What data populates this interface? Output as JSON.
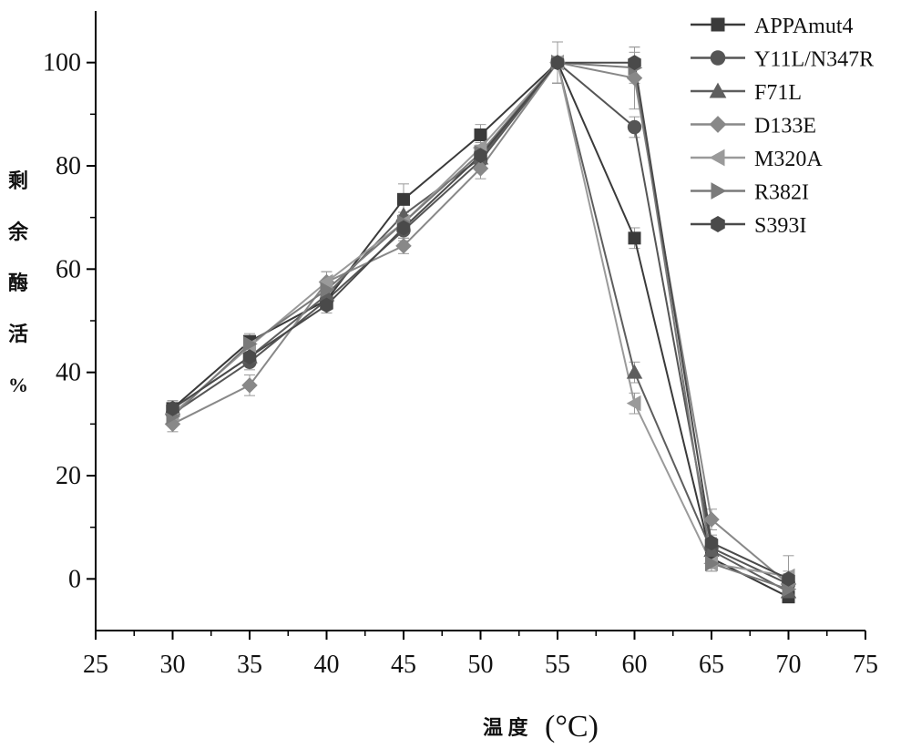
{
  "chart_data": {
    "type": "line",
    "xlabel": "温 度",
    "xlabel_unit": "(°C)",
    "ylabel": [
      "剩",
      "余",
      "酶",
      "活",
      "%"
    ],
    "xlim": [
      25,
      75
    ],
    "ylim": [
      -10,
      110
    ],
    "x_ticks": [
      25,
      30,
      35,
      40,
      45,
      50,
      55,
      60,
      65,
      70,
      75
    ],
    "y_ticks": [
      0,
      20,
      40,
      60,
      80,
      100
    ],
    "legend_position": "top-right",
    "grid": false,
    "x": [
      30,
      35,
      40,
      45,
      50,
      55,
      60,
      65,
      70
    ],
    "series": [
      {
        "name": "APPAmut4",
        "marker": "square",
        "color": "#3a3a3a",
        "values": [
          33,
          46,
          54,
          73.5,
          86,
          100,
          66,
          4,
          -3.5
        ],
        "errors": [
          1.5,
          1.5,
          1.5,
          3,
          2,
          4,
          2,
          2,
          1
        ]
      },
      {
        "name": "Y11L/N347R",
        "marker": "circle",
        "color": "#555555",
        "values": [
          32,
          42,
          54,
          67.5,
          81,
          100,
          87.5,
          6,
          -1
        ],
        "errors": [
          1.5,
          1.5,
          1.5,
          2,
          2,
          4,
          2,
          2,
          1
        ]
      },
      {
        "name": "F71L",
        "marker": "triangle-up",
        "color": "#5e5e5e",
        "values": [
          33,
          43,
          55,
          70.5,
          81.5,
          100,
          40,
          5.5,
          -2.5
        ],
        "errors": [
          1.5,
          1.5,
          1.5,
          2,
          2,
          4,
          2,
          2,
          1
        ]
      },
      {
        "name": "D133E",
        "marker": "diamond",
        "color": "#888888",
        "values": [
          30,
          37.5,
          57.5,
          64.5,
          79.5,
          100,
          97,
          11.5,
          -1
        ],
        "errors": [
          1.5,
          2,
          2,
          1.5,
          2,
          4,
          6,
          2,
          2
        ]
      },
      {
        "name": "M320A",
        "marker": "triangle-left",
        "color": "#9a9a9a",
        "values": [
          32,
          45,
          57.5,
          69,
          83.5,
          100,
          34,
          3,
          0.5
        ],
        "errors": [
          1.5,
          1.5,
          2,
          2,
          2,
          4,
          2,
          1.5,
          4
        ]
      },
      {
        "name": "R382I",
        "marker": "triangle-right",
        "color": "#7a7a7a",
        "values": [
          31.5,
          45.5,
          56,
          69,
          82.5,
          100,
          99,
          3,
          -2
        ],
        "errors": [
          1.5,
          1.5,
          1.5,
          2,
          2,
          4,
          3,
          1.5,
          1.5
        ]
      },
      {
        "name": "S393I",
        "marker": "hexagon",
        "color": "#4a4a4a",
        "values": [
          33,
          43,
          53,
          68,
          82,
          100,
          100,
          7,
          0
        ],
        "errors": [
          1.5,
          1.5,
          1.5,
          2,
          2,
          4,
          3,
          1.5,
          1.5
        ]
      }
    ]
  }
}
